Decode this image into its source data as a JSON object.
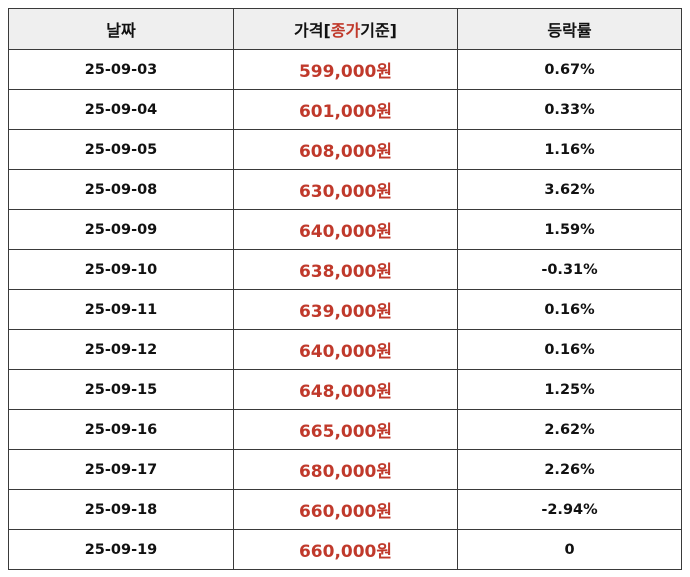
{
  "header": {
    "date": "날짜",
    "price_prefix": "가격[",
    "price_highlight": "종가",
    "price_suffix": "기준]",
    "rate": "등락률"
  },
  "colors": {
    "price_red": "#c0392b",
    "header_bg": "#efefef",
    "border": "#3a3a3a"
  },
  "rows": [
    {
      "date": "25-09-03",
      "price": "599,000원",
      "rate": "0.67%"
    },
    {
      "date": "25-09-04",
      "price": "601,000원",
      "rate": "0.33%"
    },
    {
      "date": "25-09-05",
      "price": "608,000원",
      "rate": "1.16%"
    },
    {
      "date": "25-09-08",
      "price": "630,000원",
      "rate": "3.62%"
    },
    {
      "date": "25-09-09",
      "price": "640,000원",
      "rate": "1.59%"
    },
    {
      "date": "25-09-10",
      "price": "638,000원",
      "rate": "-0.31%"
    },
    {
      "date": "25-09-11",
      "price": "639,000원",
      "rate": "0.16%"
    },
    {
      "date": "25-09-12",
      "price": "640,000원",
      "rate": "0.16%"
    },
    {
      "date": "25-09-15",
      "price": "648,000원",
      "rate": "1.25%"
    },
    {
      "date": "25-09-16",
      "price": "665,000원",
      "rate": "2.62%"
    },
    {
      "date": "25-09-17",
      "price": "680,000원",
      "rate": "2.26%"
    },
    {
      "date": "25-09-18",
      "price": "660,000원",
      "rate": "-2.94%"
    },
    {
      "date": "25-09-19",
      "price": "660,000원",
      "rate": "0"
    }
  ]
}
